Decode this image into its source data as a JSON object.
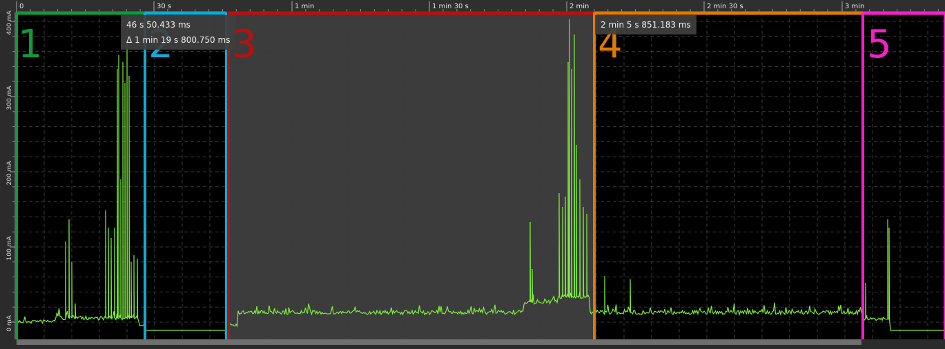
{
  "ruler": {
    "ticks": [
      "0",
      "30 s",
      "1 min",
      "1 min 30 s",
      "2 min",
      "2 min 30 s",
      "3 min"
    ]
  },
  "y_axis": {
    "labels": [
      "0 mA",
      "100 mA",
      "200 mA",
      "300 mA",
      "400 mA"
    ]
  },
  "tooltips": {
    "cursor_time": "46 s 50.433 ms",
    "delta": "Δ 1 min 19 s 800.750 ms",
    "marker_time": "2 min 5 s 851.183 ms"
  },
  "regions": [
    {
      "label": "1",
      "color": "#129a3a"
    },
    {
      "label": "2",
      "color": "#12a9d3"
    },
    {
      "label": "3",
      "color": "#c00d0d"
    },
    {
      "label": "4",
      "color": "#e07a00"
    },
    {
      "label": "5",
      "color": "#ff1ccf"
    }
  ],
  "colors": {
    "trace": "#7df03a",
    "background": "#000000",
    "selection": "#3c3c3c"
  }
}
